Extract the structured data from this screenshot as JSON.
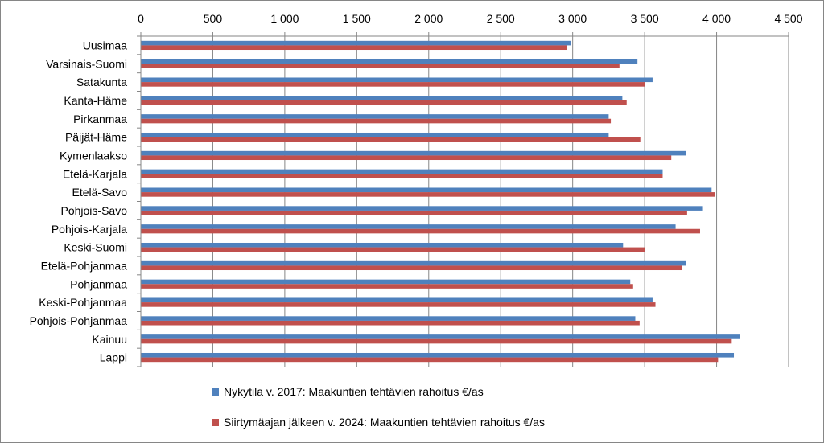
{
  "chart_data": {
    "type": "bar",
    "orientation": "horizontal",
    "categories": [
      "Uusimaa",
      "Varsinais-Suomi",
      "Satakunta",
      "Kanta-Häme",
      "Pirkanmaa",
      "Päijät-Häme",
      "Kymenlaakso",
      "Etelä-Karjala",
      "Etelä-Savo",
      "Pohjois-Savo",
      "Pohjois-Karjala",
      "Keski-Suomi",
      "Etelä-Pohjanmaa",
      "Pohjanmaa",
      "Keski-Pohjanmaa",
      "Pohjois-Pohjanmaa",
      "Kainuu",
      "Lappi"
    ],
    "series": [
      {
        "name": "Nykytila v. 2017: Maakuntien tehtävien rahoitus €/as",
        "color": "#4F81BD",
        "values": [
          2985,
          3450,
          3555,
          3345,
          3250,
          3250,
          3785,
          3625,
          3965,
          3905,
          3715,
          3350,
          3785,
          3400,
          3555,
          3435,
          4160,
          4120
        ]
      },
      {
        "name": "Siirtymäajan jälkeen v. 2024: Maakuntien tehtävien rahoitus €/as",
        "color": "#C0504D",
        "values": [
          2960,
          3325,
          3505,
          3375,
          3265,
          3470,
          3685,
          3625,
          3990,
          3795,
          3885,
          3505,
          3760,
          3420,
          3575,
          3465,
          4105,
          4010
        ]
      }
    ],
    "xlim": [
      0,
      4500
    ],
    "xticks": [
      0,
      500,
      1000,
      1500,
      2000,
      2500,
      3000,
      3500,
      4000,
      4500
    ],
    "xtick_labels": [
      "0",
      "500",
      "1 000",
      "1 500",
      "2 000",
      "2 500",
      "3 000",
      "3 500",
      "4 000",
      "4 500"
    ],
    "x_axis_position": "top",
    "grid": true,
    "legend_position": "bottom",
    "title": "",
    "xlabel": "",
    "ylabel": ""
  }
}
